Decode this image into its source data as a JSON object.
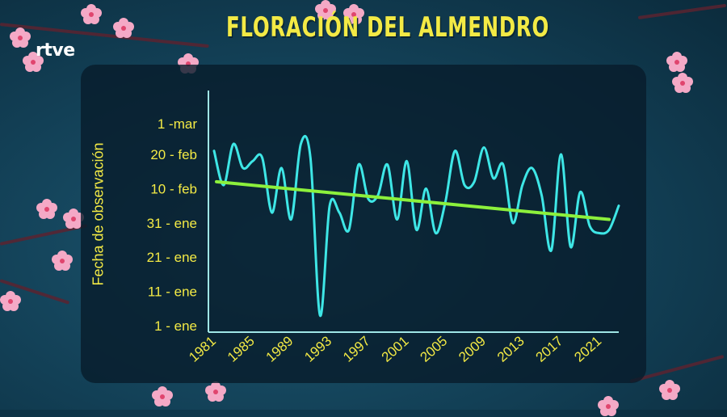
{
  "header": {
    "title": "FLORACIÓN DEL ALMENDRO",
    "logo": "rtve"
  },
  "colors": {
    "axis": "#9fe6e6",
    "series": "#3ee6e6",
    "trend": "#8cf03c",
    "text": "#f3ea45",
    "background": "#123f55"
  },
  "chart_data": {
    "type": "line",
    "title": "FLORACIÓN DEL ALMENDRO",
    "ylabel": "Fecha de observación",
    "xlabel": "",
    "x_tick_labels": [
      "1981",
      "1985",
      "1989",
      "1993",
      "1997",
      "2001",
      "2005",
      "2009",
      "2013",
      "2017",
      "2021"
    ],
    "y_tick_labels": [
      "1 - ene",
      "11 - ene",
      "21 - ene",
      "31 - ene",
      "10 - feb",
      "20 - feb",
      "1 -mar"
    ],
    "y_tick_values": [
      1,
      11,
      21,
      31,
      41,
      51,
      60
    ],
    "xlim": [
      1981,
      2023
    ],
    "ylim": [
      1,
      65
    ],
    "grid": false,
    "series": [
      {
        "role": "observations",
        "x": [
          1981,
          1982,
          1983,
          1984,
          1985,
          1986,
          1987,
          1988,
          1989,
          1990,
          1991,
          1992,
          1993,
          1994,
          1995,
          1996,
          1997,
          1998,
          1999,
          2000,
          2001,
          2002,
          2003,
          2004,
          2005,
          2006,
          2007,
          2008,
          2009,
          2010,
          2011,
          2012,
          2013,
          2014,
          2015,
          2016,
          2017,
          2018,
          2019,
          2020,
          2021,
          2022,
          2023
        ],
        "values": [
          52,
          42,
          54,
          47,
          49,
          50,
          34,
          47,
          32,
          54,
          50,
          4,
          36,
          34,
          29,
          48,
          38,
          39,
          48,
          32,
          49,
          29,
          41,
          28,
          37,
          52,
          42,
          43,
          53,
          44,
          48,
          31,
          42,
          47,
          39,
          23,
          51,
          24,
          40,
          30,
          28,
          29,
          36
        ]
      },
      {
        "role": "trend",
        "x": [
          1981,
          2023
        ],
        "values": [
          43,
          32
        ]
      }
    ]
  }
}
